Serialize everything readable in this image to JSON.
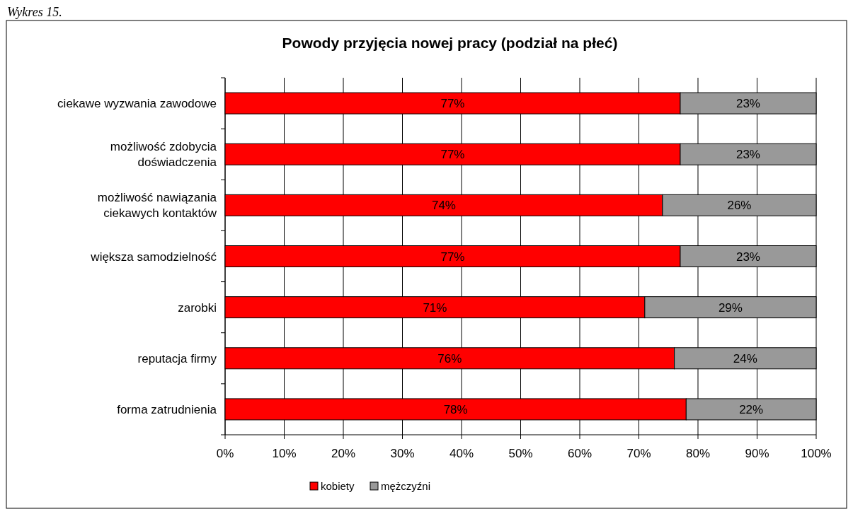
{
  "chart_data": {
    "type": "bar",
    "orientation": "horizontal",
    "stacked": true,
    "title": "Powody przyjęcia nowej pracy (podział na płeć)",
    "categories": [
      "ciekawe wyzwania zawodowe",
      "możliwość zdobycia doświadczenia",
      "możliwość nawiązania ciekawych kontaktów",
      "większa samodzielność",
      "zarobki",
      "reputacja firmy",
      "forma zatrudnienia"
    ],
    "series": [
      {
        "name": "kobiety",
        "color": "#ff0000",
        "values": [
          77,
          77,
          74,
          77,
          71,
          76,
          78
        ]
      },
      {
        "name": "mężczyźni",
        "color": "#999999",
        "values": [
          23,
          23,
          26,
          23,
          29,
          24,
          22
        ]
      }
    ],
    "xlim": [
      0,
      100
    ],
    "xticks": [
      {
        "value": 0,
        "label": "0%"
      },
      {
        "value": 10,
        "label": "10%"
      },
      {
        "value": 20,
        "label": "20%"
      },
      {
        "value": 30,
        "label": "30%"
      },
      {
        "value": 40,
        "label": "40%"
      },
      {
        "value": 50,
        "label": "50%"
      },
      {
        "value": 60,
        "label": "60%"
      },
      {
        "value": 70,
        "label": "70%"
      },
      {
        "value": 80,
        "label": "80%"
      },
      {
        "value": 90,
        "label": "90%"
      },
      {
        "value": 100,
        "label": "100%"
      }
    ],
    "value_labels": [
      [
        "77%",
        "77%",
        "74%",
        "77%",
        "71%",
        "76%",
        "78%"
      ],
      [
        "23%",
        "23%",
        "26%",
        "23%",
        "29%",
        "24%",
        "22%"
      ]
    ],
    "grid": "x",
    "legend": "bottom",
    "annotations": [
      "Wykres 15."
    ]
  }
}
